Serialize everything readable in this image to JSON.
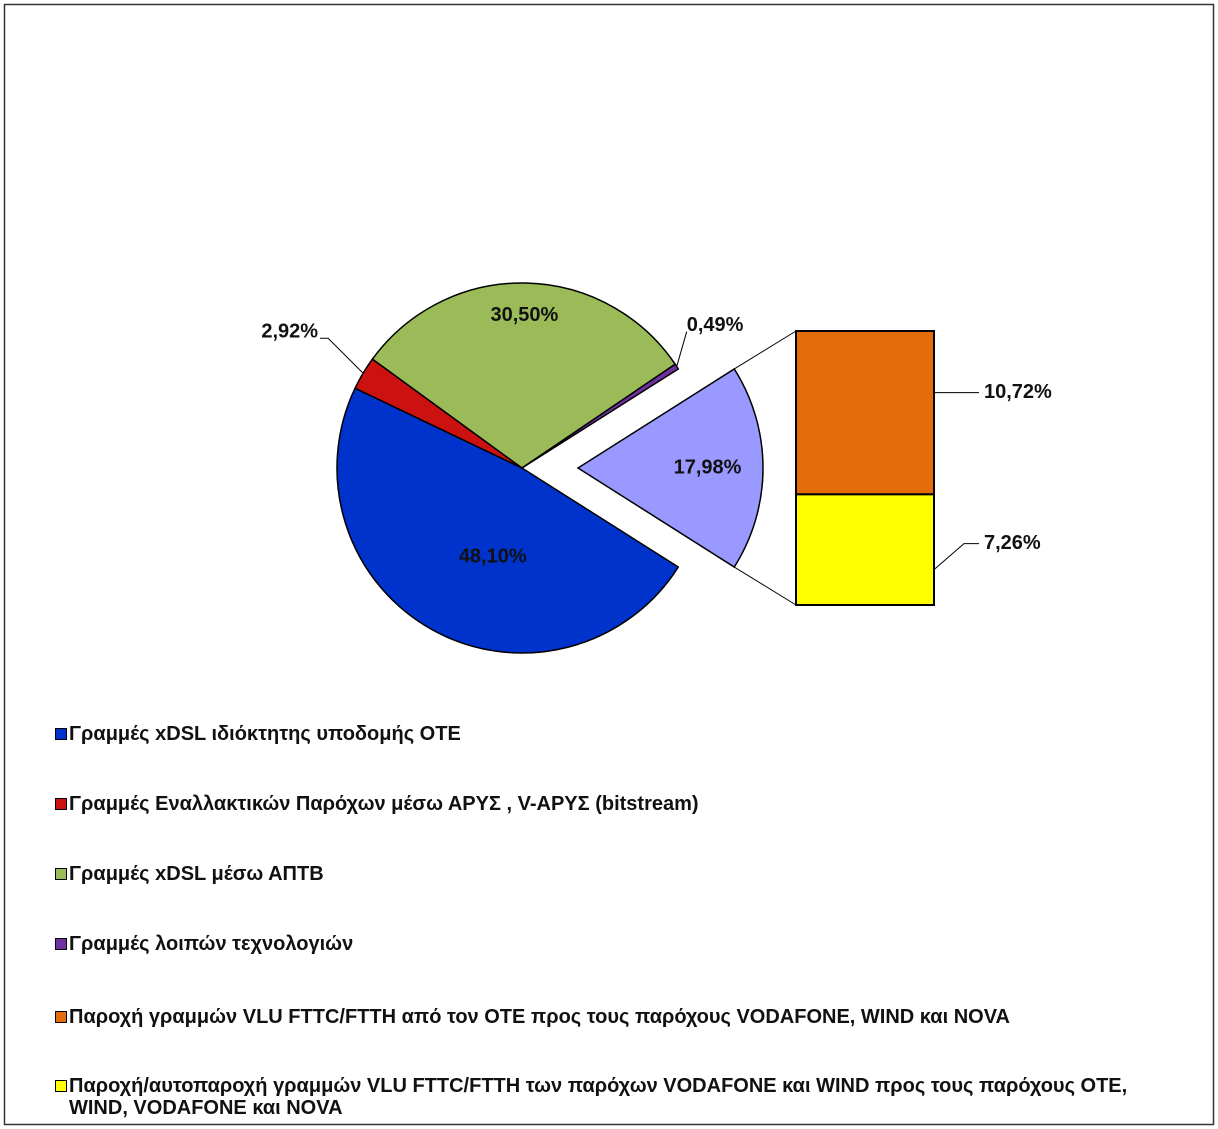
{
  "chart_data": {
    "type": "pie-of-bar",
    "categories": [
      "Γραμμές xDSL ιδιόκτητης  υποδομής ΟΤΕ",
      "Γραμμές Εναλλακτικών Παρόχων μέσω ΑΡΥΣ , V-ΑΡΥΣ  (bitstream)",
      "Γραμμές xDSL μέσω ΑΠΤΒ",
      "Γραμμές λοιπών τεχνολογιών",
      "Παροχή γραμμών VLU FTTC/FTTH από τον ΟΤΕ προς τους παρόχους VODAFONE,  WIND και NOVA",
      "Παροχή/αυτοπαροχή  γραμμών VLU FTTC/FTTH των παρόχων VODAFONE και WIND προς τους παρόχους ΟΤΕ, WIND,  VODAFONE και NOVA"
    ],
    "values": [
      48.1,
      2.92,
      30.5,
      0.49,
      10.72,
      7.26
    ],
    "value_labels": [
      "48,10%",
      "2,92%",
      "30,50%",
      "0,49%",
      "10,72%",
      "7,26%"
    ],
    "colors": [
      "#0033cc",
      "#cc1111",
      "#9bbb59",
      "#7030a0",
      "#e46c0a",
      "#ffff00"
    ],
    "other_value": 17.98,
    "other_label": "17,98%",
    "other_color": "#9999ff",
    "legend": "bottom"
  }
}
